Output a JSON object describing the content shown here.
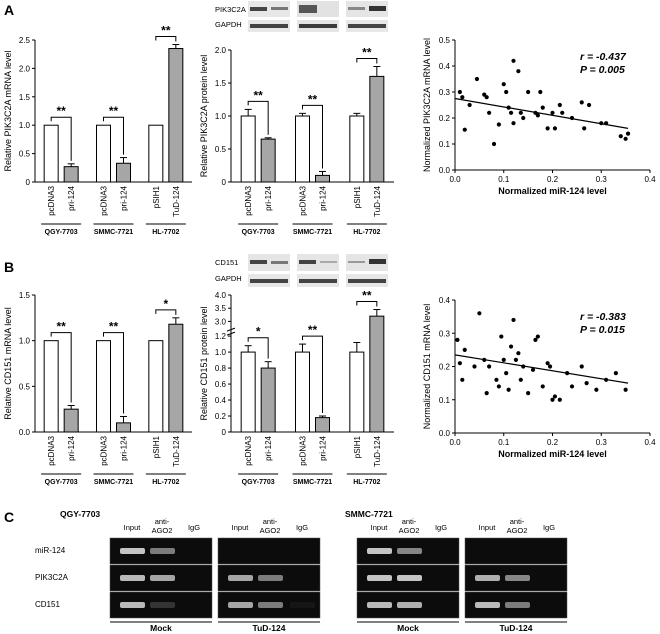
{
  "panels": {
    "a": "A",
    "b": "B",
    "c": "C"
  },
  "blot_labels": {
    "pik3c2a": "PIK3C2A",
    "gapdh": "GAPDH",
    "cd151": "CD151"
  },
  "colors": {
    "white_bar": "#ffffff",
    "gray_bar": "#a6a6a6",
    "gel_bg": "#0c0c0c",
    "band": "#d8d8d8"
  },
  "chart_data": [
    {
      "id": "a_mrna",
      "type": "bar",
      "ylabel": "Relative PIK3C2A mRNA level",
      "ylim": [
        0,
        2.5
      ],
      "yticks": [
        0,
        0.5,
        1.0,
        1.5,
        2.0,
        2.5
      ],
      "yticklabels": [
        "0",
        "0.5",
        "1.0",
        "1.5",
        "2.0",
        "2.5"
      ],
      "categories": [
        "pcDNA3",
        "pri-124",
        "pcDNA3",
        "pri-124",
        "pSIH1",
        "TuD-124"
      ],
      "values": [
        1.0,
        0.27,
        1.0,
        0.33,
        1.0,
        2.35
      ],
      "errors": [
        0,
        0.05,
        0,
        0.1,
        0,
        0.07
      ],
      "fill": [
        "white",
        "gray",
        "white",
        "gray",
        "white",
        "gray"
      ],
      "groups": [
        "QGY-7703",
        "SMMC-7721",
        "HL-7702"
      ],
      "significance": [
        "**",
        "**",
        "**"
      ]
    },
    {
      "id": "a_protein",
      "type": "bar",
      "ylabel": "Relative PIK3C2A protein level",
      "ylim": [
        0,
        2.0
      ],
      "yticks": [
        0,
        0.5,
        1.0,
        1.5,
        2.0
      ],
      "yticklabels": [
        "0",
        "0.5",
        "1.0",
        "1.5",
        "2.0"
      ],
      "categories": [
        "pcDNA3",
        "pri-124",
        "pcDNA3",
        "pri-124",
        "pSIH1",
        "TuD-124"
      ],
      "values": [
        1.0,
        0.65,
        1.0,
        0.1,
        1.0,
        1.6
      ],
      "errors": [
        0.1,
        0.02,
        0.04,
        0.06,
        0.04,
        0.15
      ],
      "fill": [
        "white",
        "gray",
        "white",
        "gray",
        "white",
        "gray"
      ],
      "groups": [
        "QGY-7703",
        "SMMC-7721",
        "HL-7702"
      ],
      "significance": [
        "**",
        "**",
        "**"
      ]
    },
    {
      "id": "a_scatter",
      "type": "scatter",
      "xlabel": "Normalized miR-124 level",
      "ylabel": "Normalized PIK3C2A mRNA level",
      "xlim": [
        0,
        0.4
      ],
      "ylim": [
        0,
        0.5
      ],
      "xticks": [
        0,
        0.1,
        0.2,
        0.3,
        0.4
      ],
      "xticklabels": [
        "0.0",
        "0.1",
        "0.2",
        "0.3",
        "0.4"
      ],
      "yticks": [
        0,
        0.1,
        0.2,
        0.3,
        0.4,
        0.5
      ],
      "yticklabels": [
        "0.0",
        "0.1",
        "0.2",
        "0.3",
        "0.4",
        "0.5"
      ],
      "r_text": "r = -0.437",
      "p_text": "P = 0.005",
      "fit": [
        [
          0,
          0.275
        ],
        [
          0.355,
          0.16
        ]
      ],
      "points": [
        [
          0.01,
          0.3
        ],
        [
          0.015,
          0.28
        ],
        [
          0.02,
          0.155
        ],
        [
          0.03,
          0.25
        ],
        [
          0.045,
          0.35
        ],
        [
          0.06,
          0.29
        ],
        [
          0.065,
          0.28
        ],
        [
          0.07,
          0.22
        ],
        [
          0.08,
          0.1
        ],
        [
          0.09,
          0.175
        ],
        [
          0.1,
          0.33
        ],
        [
          0.105,
          0.3
        ],
        [
          0.11,
          0.24
        ],
        [
          0.115,
          0.22
        ],
        [
          0.12,
          0.18
        ],
        [
          0.12,
          0.42
        ],
        [
          0.13,
          0.38
        ],
        [
          0.135,
          0.22
        ],
        [
          0.14,
          0.2
        ],
        [
          0.15,
          0.3
        ],
        [
          0.165,
          0.22
        ],
        [
          0.17,
          0.21
        ],
        [
          0.175,
          0.3
        ],
        [
          0.18,
          0.24
        ],
        [
          0.19,
          0.16
        ],
        [
          0.2,
          0.22
        ],
        [
          0.205,
          0.16
        ],
        [
          0.215,
          0.25
        ],
        [
          0.22,
          0.22
        ],
        [
          0.24,
          0.2
        ],
        [
          0.26,
          0.26
        ],
        [
          0.265,
          0.16
        ],
        [
          0.275,
          0.25
        ],
        [
          0.3,
          0.18
        ],
        [
          0.31,
          0.18
        ],
        [
          0.34,
          0.13
        ],
        [
          0.35,
          0.12
        ],
        [
          0.355,
          0.14
        ]
      ]
    },
    {
      "id": "b_mrna",
      "type": "bar",
      "ylabel": "Relative CD151 mRNA level",
      "ylim": [
        0,
        1.5
      ],
      "yticks": [
        0,
        0.5,
        1.0,
        1.5
      ],
      "yticklabels": [
        "0.0",
        "0.5",
        "1.0",
        "1.5"
      ],
      "categories": [
        "pcDNA3",
        "pri-124",
        "pcDNA3",
        "pri-124",
        "pSIH1",
        "TuD-124"
      ],
      "values": [
        1.0,
        0.25,
        1.0,
        0.1,
        1.0,
        1.18
      ],
      "errors": [
        0,
        0.04,
        0,
        0.07,
        0,
        0.07
      ],
      "fill": [
        "white",
        "gray",
        "white",
        "gray",
        "white",
        "gray"
      ],
      "groups": [
        "QGY-7703",
        "SMMC-7721",
        "HL-7702"
      ],
      "significance": [
        "**",
        "**",
        "*"
      ]
    },
    {
      "id": "b_protein",
      "type": "bar",
      "ylabel": "Relative CD151 protein level",
      "ylim": [
        0,
        4.0
      ],
      "yticks": [
        0,
        0.2,
        0.4,
        0.6,
        0.8,
        1.0,
        1.2,
        3.0,
        3.5,
        4.0
      ],
      "yticklabels": [
        "0",
        "0.2",
        "0.4",
        "0.6",
        "0.8",
        "1.0",
        "1.2",
        "3.0",
        "3.5",
        "4.0"
      ],
      "axis_break": [
        1.2,
        2.6
      ],
      "categories": [
        "pcDNA3",
        "pri-124",
        "pcDNA3",
        "pri-124",
        "pSIH1",
        "TuD-124"
      ],
      "values": [
        1.0,
        0.8,
        1.0,
        0.18,
        1.0,
        3.2
      ],
      "errors": [
        0.08,
        0.08,
        0.1,
        0.02,
        0.12,
        0.25
      ],
      "fill": [
        "white",
        "gray",
        "white",
        "gray",
        "white",
        "gray"
      ],
      "groups": [
        "QGY-7703",
        "SMMC-7721",
        "HL-7702"
      ],
      "significance": [
        "*",
        "**",
        "**"
      ]
    },
    {
      "id": "b_scatter",
      "type": "scatter",
      "xlabel": "Normalized miR-124 level",
      "ylabel": "Normalized CD151 mRNA level",
      "xlim": [
        0,
        0.4
      ],
      "ylim": [
        0,
        0.4
      ],
      "xticks": [
        0,
        0.1,
        0.2,
        0.3,
        0.4
      ],
      "xticklabels": [
        "0.0",
        "0.1",
        "0.2",
        "0.3",
        "0.4"
      ],
      "yticks": [
        0,
        0.1,
        0.2,
        0.3,
        0.4
      ],
      "yticklabels": [
        "0.0",
        "0.1",
        "0.2",
        "0.3",
        "0.4"
      ],
      "r_text": "r = -0.383",
      "p_text": "P = 0.015",
      "fit": [
        [
          0,
          0.235
        ],
        [
          0.355,
          0.15
        ]
      ],
      "points": [
        [
          0.005,
          0.28
        ],
        [
          0.01,
          0.21
        ],
        [
          0.015,
          0.16
        ],
        [
          0.02,
          0.25
        ],
        [
          0.04,
          0.2
        ],
        [
          0.05,
          0.36
        ],
        [
          0.06,
          0.22
        ],
        [
          0.065,
          0.12
        ],
        [
          0.07,
          0.2
        ],
        [
          0.085,
          0.16
        ],
        [
          0.09,
          0.14
        ],
        [
          0.095,
          0.29
        ],
        [
          0.1,
          0.22
        ],
        [
          0.105,
          0.18
        ],
        [
          0.11,
          0.13
        ],
        [
          0.115,
          0.26
        ],
        [
          0.12,
          0.34
        ],
        [
          0.125,
          0.22
        ],
        [
          0.13,
          0.24
        ],
        [
          0.135,
          0.16
        ],
        [
          0.14,
          0.2
        ],
        [
          0.15,
          0.12
        ],
        [
          0.16,
          0.19
        ],
        [
          0.165,
          0.28
        ],
        [
          0.17,
          0.29
        ],
        [
          0.18,
          0.14
        ],
        [
          0.19,
          0.21
        ],
        [
          0.195,
          0.2
        ],
        [
          0.2,
          0.1
        ],
        [
          0.205,
          0.11
        ],
        [
          0.215,
          0.1
        ],
        [
          0.23,
          0.18
        ],
        [
          0.24,
          0.14
        ],
        [
          0.26,
          0.2
        ],
        [
          0.27,
          0.15
        ],
        [
          0.29,
          0.13
        ],
        [
          0.31,
          0.16
        ],
        [
          0.33,
          0.18
        ],
        [
          0.35,
          0.13
        ]
      ]
    }
  ],
  "gel": {
    "cell_lines": [
      "QGY-7703",
      "SMMC-7721"
    ],
    "conditions": [
      "Mock",
      "TuD-124"
    ],
    "lanes": [
      "Input",
      "anti-AGO2",
      "IgG"
    ],
    "rows": [
      "miR-124",
      "PIK3C2A",
      "CD151"
    ],
    "intensities": [
      [
        [
          0.9,
          0.55,
          0
        ],
        [
          0,
          0,
          0
        ],
        [
          0.9,
          0.6,
          0
        ],
        [
          0,
          0,
          0
        ]
      ],
      [
        [
          0.85,
          0.75,
          0
        ],
        [
          0.75,
          0.55,
          0
        ],
        [
          0.9,
          0.9,
          0
        ],
        [
          0.8,
          0.6,
          0
        ]
      ],
      [
        [
          0.85,
          0.2,
          0
        ],
        [
          0.75,
          0.55,
          0.05
        ],
        [
          0.85,
          0.8,
          0
        ],
        [
          0.85,
          0.55,
          0
        ]
      ]
    ]
  }
}
